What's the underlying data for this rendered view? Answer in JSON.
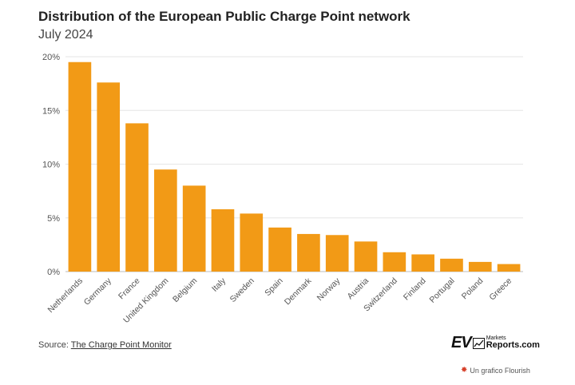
{
  "chart_data": {
    "type": "bar",
    "title": "Distribution of the European Public Charge Point network",
    "subtitle": "July 2024",
    "categories": [
      "Netherlands",
      "Germany",
      "France",
      "United Kingdom",
      "Belgium",
      "Italy",
      "Sweden",
      "Spain",
      "Denmark",
      "Norway",
      "Austria",
      "Switzerland",
      "Finland",
      "Portugal",
      "Poland",
      "Greece"
    ],
    "values": [
      19.5,
      17.6,
      13.8,
      9.5,
      8.0,
      5.8,
      5.4,
      4.1,
      3.5,
      3.4,
      2.8,
      1.8,
      1.6,
      1.2,
      0.9,
      0.7
    ],
    "yticks": [
      "0%",
      "5%",
      "10%",
      "15%",
      "20%"
    ],
    "ylim": [
      0,
      20
    ],
    "bar_color": "#f29a16",
    "grid": true,
    "xlabel": "",
    "ylabel": ""
  },
  "footer": {
    "source_prefix": "Source: ",
    "source_link": "The Charge Point Monitor",
    "logo_ev": "EV",
    "logo_small": "Markets",
    "logo_big": "Reports.com",
    "flourish": "Un grafico Flourish"
  }
}
